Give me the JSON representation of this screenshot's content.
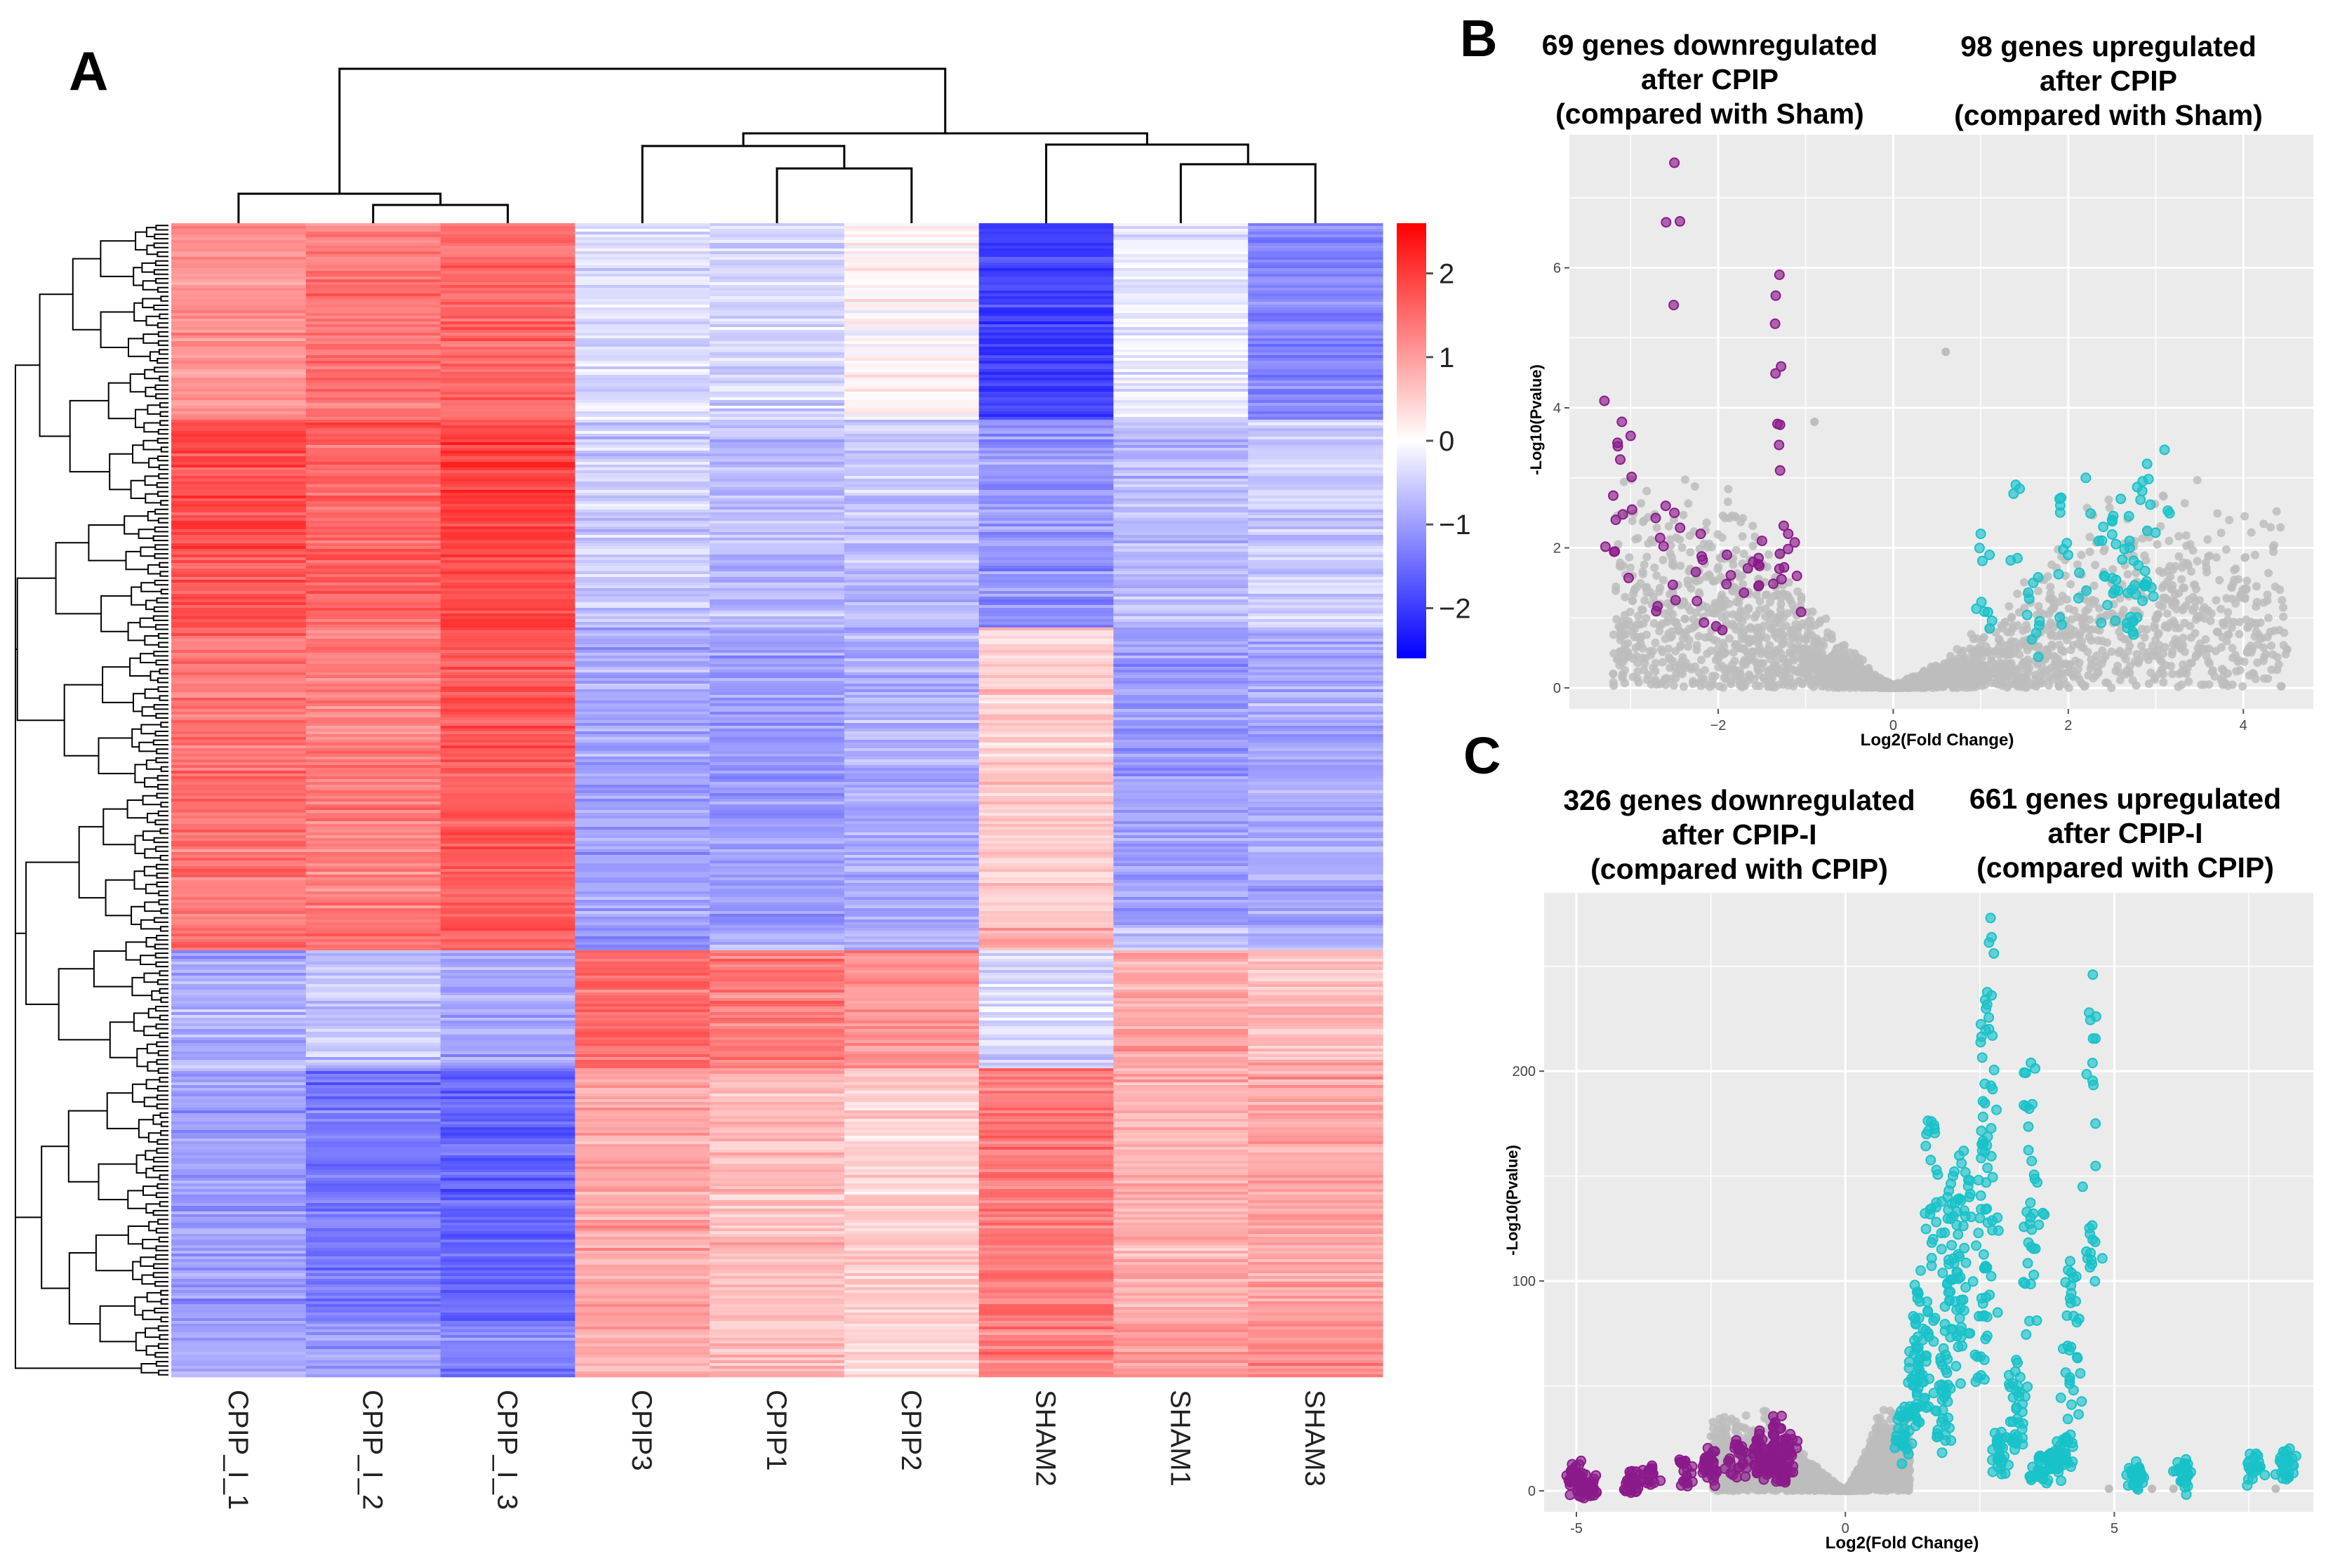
{
  "colors": {
    "high": "#ff0000",
    "mid": "#ffffff",
    "low": "#0000ff",
    "panel_bg": "#ebebeb",
    "grid": "#ffffff",
    "ns": "#bdbdbd",
    "down": "#8b1a8b",
    "up": "#19c2c9"
  },
  "chart_data": [
    {
      "panel": "A",
      "type": "heatmap",
      "title": "",
      "columns": [
        "CPIP_I_1",
        "CPIP_I_2",
        "CPIP_I_3",
        "CPIP3",
        "CPIP1",
        "CPIP2",
        "SHAM2",
        "SHAM1",
        "SHAM3"
      ],
      "colorbar": {
        "ticks": [
          "2",
          "1",
          "0",
          "−1",
          "−2"
        ],
        "tick_values": [
          2,
          1,
          0,
          -1,
          -2
        ],
        "range": [
          -2.6,
          2.6
        ]
      },
      "column_dendrogram": true,
      "row_dendrogram": true,
      "blocks": [
        {
          "rows": [
            0.0,
            0.17
          ],
          "values": [
            1.1,
            1.4,
            1.5,
            -0.3,
            -0.4,
            0.1,
            -2.0,
            -0.2,
            -1.2
          ]
        },
        {
          "rows": [
            0.17,
            0.35
          ],
          "values": [
            1.8,
            1.6,
            1.9,
            -0.5,
            -0.7,
            -0.6,
            -1.1,
            -0.7,
            -0.5
          ]
        },
        {
          "rows": [
            0.35,
            0.61
          ],
          "values": [
            1.4,
            1.3,
            1.7,
            -0.9,
            -1.0,
            -0.8,
            0.5,
            -1.0,
            -0.9
          ]
        },
        {
          "rows": [
            0.61,
            0.63
          ],
          "values": [
            1.5,
            1.6,
            1.6,
            -1.1,
            -0.8,
            -0.9,
            0.9,
            -0.6,
            -0.7
          ]
        },
        {
          "rows": [
            0.63,
            0.73
          ],
          "values": [
            -0.8,
            -0.6,
            -0.9,
            1.5,
            1.3,
            1.1,
            -0.4,
            0.9,
            0.7
          ]
        },
        {
          "rows": [
            0.73,
            0.95
          ],
          "values": [
            -1.0,
            -1.4,
            -1.6,
            0.9,
            0.7,
            0.5,
            1.4,
            0.8,
            0.9
          ]
        },
        {
          "rows": [
            0.95,
            1.0
          ],
          "values": [
            -0.9,
            -1.1,
            -1.3,
            0.8,
            0.6,
            0.4,
            1.3,
            1.0,
            1.2
          ]
        }
      ]
    },
    {
      "panel": "B",
      "type": "scatter",
      "annotations": {
        "left": [
          "69 genes downregulated",
          "after CPIP",
          "(compared with Sham)"
        ],
        "right": [
          "98 genes upregulated",
          "after CPIP",
          "(compared with Sham)"
        ]
      },
      "xlabel": "Log2(Fold Change)",
      "ylabel": "-Log10(Pvalue)",
      "xlim": [
        -3.7,
        4.8
      ],
      "ylim": [
        -0.3,
        7.9
      ],
      "xticks": [
        -2,
        0,
        2,
        4
      ],
      "xtick_labels": [
        "−2",
        "0",
        "2",
        "4"
      ],
      "yticks": [
        0,
        2,
        4,
        6
      ],
      "ns_envelope": {
        "center": 0,
        "base": 0.05,
        "spread": [
          -3.2,
          4.5
        ],
        "max": 3.0
      },
      "highlight_down": {
        "count": 69,
        "color": "down",
        "points": [
          [
            -2.5,
            7.5
          ],
          [
            -1.3,
            5.9
          ],
          [
            -1.35,
            5.2
          ],
          [
            -3.3,
            4.1
          ],
          [
            -3.1,
            3.8
          ],
          [
            -3.0,
            3.6
          ],
          [
            -3.15,
            3.5
          ],
          [
            -2.6,
            2.6
          ],
          [
            -2.5,
            2.5
          ],
          [
            -2.2,
            2.2
          ],
          [
            -1.9,
            1.9
          ],
          [
            -1.6,
            1.8
          ],
          [
            -1.3,
            1.7
          ],
          [
            -1.1,
            1.6
          ],
          [
            -1.5,
            2.1
          ],
          [
            -1.2,
            2.2
          ]
        ]
      },
      "highlight_up": {
        "count": 98,
        "color": "up",
        "points": [
          [
            3.1,
            3.4
          ],
          [
            2.9,
            3.2
          ],
          [
            2.85,
            2.95
          ],
          [
            2.6,
            2.7
          ],
          [
            2.5,
            2.4
          ],
          [
            2.4,
            2.3
          ],
          [
            2.2,
            3.0
          ],
          [
            1.9,
            2.7
          ],
          [
            1.4,
            2.9
          ],
          [
            1.1,
            1.9
          ],
          [
            1.0,
            2.2
          ],
          [
            2.7,
            2.1
          ],
          [
            2.8,
            1.75
          ],
          [
            1.6,
            1.5
          ]
        ]
      },
      "outliers": [
        [
          0.6,
          4.8
        ],
        [
          3.7,
          0.8
        ],
        [
          4.1,
          0.55
        ],
        [
          4.5,
          0.55
        ],
        [
          -3.2,
          0.2
        ],
        [
          -0.9,
          3.8
        ]
      ]
    },
    {
      "panel": "C",
      "type": "scatter",
      "annotations": {
        "left": [
          "326 genes downregulated",
          "after CPIP-I",
          "(compared with CPIP)"
        ],
        "right": [
          "661 genes upregulated",
          "after CPIP-I",
          "(compared with CPIP)"
        ]
      },
      "xlabel": "Log2(Fold Change)",
      "ylabel": "-Log10(Pvalue)",
      "xlim": [
        -5.6,
        8.7
      ],
      "ylim": [
        -10,
        285
      ],
      "xticks": [
        -5,
        0,
        5
      ],
      "yticks": [
        0,
        100,
        200
      ],
      "ns_envelope": {
        "center": 0,
        "base": 1,
        "spread": [
          -2.5,
          1.2
        ],
        "max": 40
      },
      "highlight_down": {
        "count": 326,
        "color": "down",
        "points": [
          [
            -5.0,
            8
          ],
          [
            -4.8,
            3
          ],
          [
            -4.0,
            6
          ],
          [
            -3.6,
            10
          ],
          [
            -3.0,
            13
          ],
          [
            -2.5,
            17
          ],
          [
            -2.0,
            22
          ],
          [
            -1.6,
            27
          ],
          [
            -1.3,
            32
          ],
          [
            -1.1,
            25
          ],
          [
            -1.2,
            18
          ],
          [
            -1.5,
            20
          ]
        ]
      },
      "highlight_up": {
        "count": 661,
        "color": "up",
        "points": [
          [
            2.7,
            273
          ],
          [
            2.6,
            234
          ],
          [
            4.6,
            246
          ],
          [
            3.45,
            204
          ],
          [
            1.6,
            176
          ],
          [
            2.2,
            162
          ],
          [
            2.0,
            150
          ],
          [
            2.5,
            130
          ],
          [
            1.9,
            140
          ],
          [
            1.4,
            105
          ],
          [
            4.2,
            104
          ],
          [
            1.3,
            82
          ],
          [
            3.2,
            61
          ],
          [
            4.1,
            25
          ],
          [
            3.9,
            19
          ],
          [
            8.2,
            19
          ],
          [
            7.6,
            16
          ],
          [
            6.3,
            13
          ],
          [
            5.4,
            10
          ],
          [
            3.6,
            14
          ],
          [
            2.9,
            28
          ],
          [
            1.8,
            60
          ],
          [
            1.1,
            40
          ]
        ]
      },
      "outliers": [
        [
          6.1,
          1
        ],
        [
          5.7,
          1
        ],
        [
          5.4,
          1
        ],
        [
          4.9,
          1
        ],
        [
          8.0,
          1
        ]
      ]
    }
  ]
}
